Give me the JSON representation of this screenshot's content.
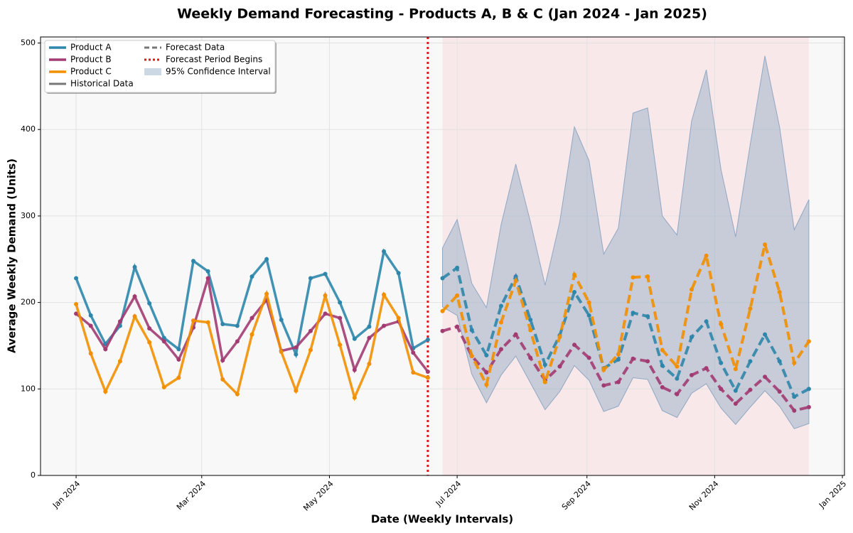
{
  "chart_data": {
    "type": "line",
    "title": "Weekly Demand Forecasting - Products A, B & C (Jan 2024 - Jan 2025)",
    "x_label": "Date (Weekly Intervals)",
    "y_label": "Average Weekly Demand (Units)",
    "x": [
      "2024-01-01",
      "2024-01-08",
      "2024-01-15",
      "2024-01-22",
      "2024-01-29",
      "2024-02-05",
      "2024-02-12",
      "2024-02-19",
      "2024-02-26",
      "2024-03-04",
      "2024-03-11",
      "2024-03-18",
      "2024-03-25",
      "2024-04-01",
      "2024-04-08",
      "2024-04-15",
      "2024-04-22",
      "2024-04-29",
      "2024-05-06",
      "2024-05-13",
      "2024-05-20",
      "2024-05-27",
      "2024-06-03",
      "2024-06-10",
      "2024-06-17"
    ],
    "forecast_x": [
      "2024-06-24",
      "2024-07-01",
      "2024-07-08",
      "2024-07-15",
      "2024-07-22",
      "2024-07-29",
      "2024-08-05",
      "2024-08-12",
      "2024-08-19",
      "2024-08-26",
      "2024-09-02",
      "2024-09-09",
      "2024-09-16",
      "2024-09-23",
      "2024-09-30",
      "2024-10-07",
      "2024-10-14",
      "2024-10-21",
      "2024-10-28",
      "2024-11-04",
      "2024-11-11",
      "2024-11-18",
      "2024-11-25",
      "2024-12-02",
      "2024-12-09",
      "2024-12-16"
    ],
    "series": [
      {
        "name": "Product A",
        "color": "#2e86ab",
        "values": [
          228,
          185,
          152,
          173,
          241,
          199,
          159,
          146,
          248,
          236,
          175,
          173,
          230,
          250,
          180,
          140,
          228,
          233,
          200,
          158,
          172,
          259,
          234,
          147,
          157
        ],
        "forecast_values": [
          228,
          240,
          168,
          139,
          196,
          230,
          180,
          128,
          162,
          212,
          185,
          124,
          134,
          188,
          184,
          127,
          112,
          160,
          178,
          130,
          98,
          132,
          163,
          132,
          91,
          100
        ]
      },
      {
        "name": "Product B",
        "color": "#a23b72",
        "values": [
          187,
          173,
          146,
          178,
          207,
          170,
          155,
          134,
          171,
          228,
          133,
          155,
          182,
          203,
          144,
          148,
          167,
          187,
          182,
          122,
          159,
          173,
          178,
          142,
          120
        ],
        "forecast_values": [
          167,
          172,
          138,
          119,
          146,
          163,
          136,
          110,
          126,
          151,
          136,
          104,
          108,
          135,
          132,
          102,
          94,
          116,
          124,
          100,
          83,
          99,
          114,
          97,
          75,
          79
        ]
      },
      {
        "name": "Product C",
        "color": "#f18f01",
        "values": [
          198,
          141,
          97,
          132,
          184,
          154,
          102,
          113,
          179,
          177,
          111,
          94,
          163,
          210,
          143,
          98,
          145,
          208,
          151,
          90,
          129,
          209,
          182,
          119,
          113
        ],
        "forecast_values": [
          190,
          208,
          138,
          105,
          177,
          225,
          168,
          108,
          160,
          232,
          200,
          122,
          140,
          229,
          230,
          145,
          126,
          215,
          254,
          175,
          123,
          193,
          267,
          212,
          130,
          155
        ]
      }
    ],
    "historical_label": "Historical Data",
    "forecast_label": "Forecast Data",
    "forecast_start": {
      "label": "Forecast Period Begins",
      "x": "2024-06-17",
      "color": "#e8141a"
    },
    "confidence_interval": {
      "name": "95% Confidence Interval",
      "color": "#8fa8c4",
      "lower": [
        195,
        185,
        117,
        84,
        116,
        138,
        107,
        76,
        97,
        127,
        110,
        74,
        80,
        113,
        111,
        75,
        67,
        95,
        106,
        78,
        59,
        79,
        98,
        80,
        54,
        60
      ],
      "upper": [
        263,
        296,
        222,
        194,
        290,
        360,
        293,
        220,
        293,
        403,
        364,
        256,
        286,
        419,
        425,
        300,
        278,
        410,
        469,
        354,
        276,
        383,
        485,
        403,
        284,
        319
      ]
    },
    "forecast_shade_color": "#f9dde0",
    "xlim": [
      "2023-12-15",
      "2025-01-02"
    ],
    "xticks": [
      {
        "value": "2024-01-01",
        "label": "Jan 2024"
      },
      {
        "value": "2024-03-01",
        "label": "Mar 2024"
      },
      {
        "value": "2024-05-01",
        "label": "May 2024"
      },
      {
        "value": "2024-07-01",
        "label": "Jul 2024"
      },
      {
        "value": "2024-09-01",
        "label": "Sep 2024"
      },
      {
        "value": "2024-11-01",
        "label": "Nov 2024"
      },
      {
        "value": "2025-01-01",
        "label": "Jan 2025"
      }
    ],
    "ylim": [
      0,
      507
    ],
    "yticks": [
      0,
      100,
      200,
      300,
      400,
      500
    ],
    "grid": true,
    "legend_position": "upper-left"
  }
}
